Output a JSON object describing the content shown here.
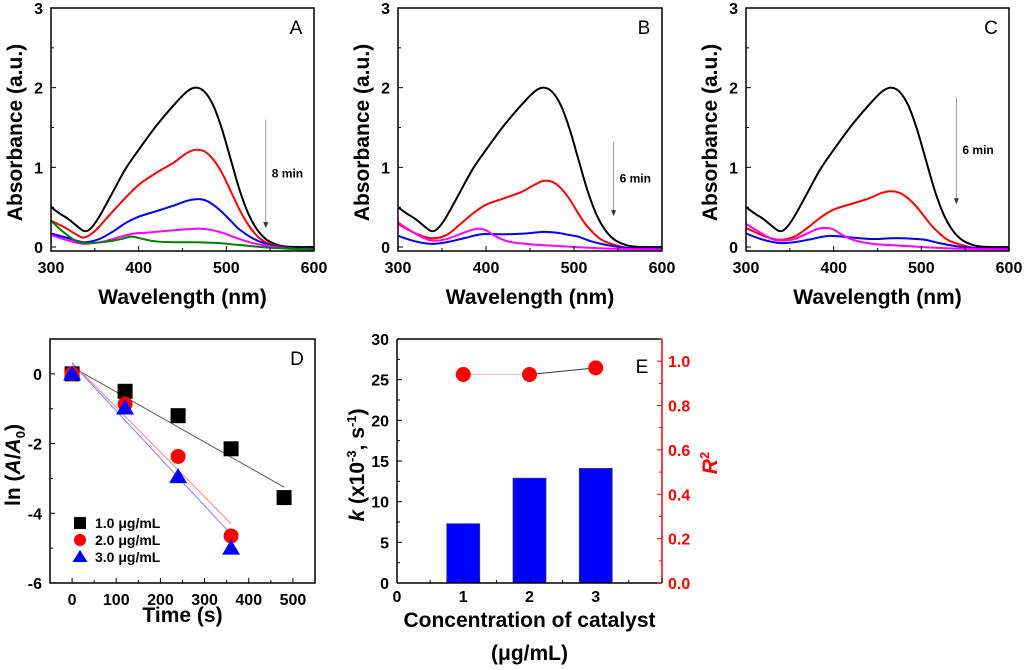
{
  "chart_data": [
    {
      "id": "A",
      "type": "line",
      "panel_label": "A",
      "xlabel": "Wavelength (nm)",
      "ylabel": "Absorbance (a.u.)",
      "xlim": [
        300,
        600
      ],
      "ylim": [
        -0.05,
        3
      ],
      "xticks": [
        300,
        400,
        500,
        600
      ],
      "yticks": [
        0,
        1,
        2,
        3
      ],
      "annotation": "8 min",
      "annotation_arrow": {
        "x": 545,
        "y_from": 1.6,
        "y_to": 0.25
      },
      "series": [
        {
          "name": "t0",
          "color": "#000000",
          "x": [
            300,
            310,
            320,
            330,
            338,
            345,
            355,
            370,
            385,
            400,
            420,
            440,
            455,
            465,
            475,
            485,
            495,
            505,
            515,
            525,
            535,
            545,
            555,
            565,
            580,
            600
          ],
          "y": [
            0.5,
            0.42,
            0.35,
            0.26,
            0.2,
            0.23,
            0.38,
            0.68,
            0.98,
            1.22,
            1.52,
            1.78,
            1.95,
            2.0,
            1.95,
            1.78,
            1.48,
            1.1,
            0.72,
            0.42,
            0.22,
            0.1,
            0.04,
            0.01,
            0.0,
            0.0
          ]
        },
        {
          "name": "t1",
          "color": "#ff0000",
          "x": [
            300,
            315,
            330,
            338,
            350,
            365,
            380,
            400,
            420,
            440,
            455,
            465,
            475,
            485,
            495,
            505,
            515,
            525,
            535,
            545,
            560,
            580,
            600
          ],
          "y": [
            0.33,
            0.25,
            0.15,
            0.12,
            0.2,
            0.38,
            0.56,
            0.78,
            0.93,
            1.06,
            1.18,
            1.22,
            1.2,
            1.1,
            0.93,
            0.7,
            0.47,
            0.28,
            0.14,
            0.06,
            0.01,
            -0.02,
            -0.02
          ]
        },
        {
          "name": "t2",
          "color": "#0000ff",
          "x": [
            300,
            320,
            338,
            355,
            370,
            385,
            400,
            420,
            440,
            455,
            465,
            475,
            485,
            495,
            505,
            515,
            530,
            545,
            560,
            580,
            600
          ],
          "y": [
            0.17,
            0.11,
            0.06,
            0.1,
            0.19,
            0.3,
            0.38,
            0.45,
            0.52,
            0.58,
            0.6,
            0.59,
            0.53,
            0.44,
            0.33,
            0.22,
            0.11,
            0.04,
            0.0,
            -0.02,
            -0.02
          ]
        },
        {
          "name": "t3",
          "color": "#ff00ff",
          "x": [
            300,
            320,
            338,
            360,
            380,
            395,
            410,
            440,
            465,
            480,
            495,
            510,
            530,
            550,
            570,
            600
          ],
          "y": [
            0.15,
            0.08,
            0.04,
            0.07,
            0.13,
            0.17,
            0.18,
            0.21,
            0.23,
            0.22,
            0.18,
            0.12,
            0.05,
            0.01,
            -0.02,
            -0.03
          ]
        },
        {
          "name": "t4",
          "color": "#008000",
          "x": [
            300,
            315,
            330,
            345,
            365,
            380,
            392,
            405,
            420,
            440,
            465,
            490,
            510,
            530,
            550,
            570,
            600
          ],
          "y": [
            0.33,
            0.18,
            0.07,
            0.05,
            0.07,
            0.1,
            0.13,
            0.1,
            0.07,
            0.06,
            0.06,
            0.05,
            0.03,
            0.01,
            -0.01,
            -0.02,
            -0.03
          ]
        }
      ]
    },
    {
      "id": "B",
      "type": "line",
      "panel_label": "B",
      "xlabel": "Wavelength (nm)",
      "ylabel": "Absorbance (a.u.)",
      "xlim": [
        300,
        600
      ],
      "ylim": [
        -0.05,
        3
      ],
      "xticks": [
        300,
        400,
        500,
        600
      ],
      "yticks": [
        0,
        1,
        2,
        3
      ],
      "annotation": "6 min",
      "annotation_arrow": {
        "x": 545,
        "y_from": 1.32,
        "y_to": 0.4
      },
      "series": [
        {
          "name": "t0",
          "color": "#000000",
          "x": [
            300,
            310,
            320,
            330,
            338,
            345,
            355,
            370,
            385,
            400,
            420,
            440,
            455,
            465,
            475,
            485,
            495,
            505,
            515,
            525,
            535,
            545,
            555,
            565,
            580,
            600
          ],
          "y": [
            0.5,
            0.42,
            0.35,
            0.26,
            0.2,
            0.23,
            0.38,
            0.68,
            0.98,
            1.22,
            1.52,
            1.78,
            1.95,
            2.0,
            1.95,
            1.78,
            1.48,
            1.1,
            0.72,
            0.42,
            0.22,
            0.1,
            0.04,
            0.01,
            0.0,
            0.0
          ]
        },
        {
          "name": "t1",
          "color": "#ff0000",
          "x": [
            300,
            320,
            338,
            355,
            370,
            385,
            400,
            420,
            440,
            455,
            465,
            475,
            485,
            495,
            505,
            515,
            530,
            545,
            560,
            580,
            600
          ],
          "y": [
            0.29,
            0.17,
            0.11,
            0.15,
            0.28,
            0.42,
            0.53,
            0.61,
            0.69,
            0.78,
            0.83,
            0.82,
            0.74,
            0.6,
            0.42,
            0.26,
            0.1,
            0.03,
            -0.01,
            -0.02,
            -0.02
          ]
        },
        {
          "name": "t2",
          "color": "#0000ff",
          "x": [
            300,
            320,
            338,
            355,
            375,
            395,
            420,
            445,
            465,
            480,
            495,
            505,
            520,
            540,
            560,
            580,
            600
          ],
          "y": [
            0.14,
            0.07,
            0.04,
            0.06,
            0.11,
            0.16,
            0.16,
            0.17,
            0.19,
            0.18,
            0.15,
            0.13,
            0.07,
            0.02,
            -0.01,
            -0.02,
            -0.02
          ]
        },
        {
          "name": "t3",
          "color": "#ff00ff",
          "x": [
            300,
            315,
            330,
            340,
            355,
            370,
            380,
            390,
            400,
            410,
            425,
            445,
            470,
            500,
            540,
            600
          ],
          "y": [
            0.31,
            0.2,
            0.11,
            0.08,
            0.1,
            0.16,
            0.2,
            0.23,
            0.21,
            0.14,
            0.07,
            0.04,
            0.02,
            0.0,
            -0.02,
            -0.03
          ]
        }
      ]
    },
    {
      "id": "C",
      "type": "line",
      "panel_label": "C",
      "xlabel": "Wavelength (nm)",
      "ylabel": "Absorbance (a.u.)",
      "xlim": [
        300,
        600
      ],
      "ylim": [
        -0.05,
        3
      ],
      "xticks": [
        300,
        400,
        500,
        600
      ],
      "yticks": [
        0,
        1,
        2,
        3
      ],
      "annotation": "6 min",
      "annotation_arrow": {
        "x": 540,
        "y_from": 1.88,
        "y_to": 0.55
      },
      "series": [
        {
          "name": "t0",
          "color": "#000000",
          "x": [
            300,
            310,
            320,
            330,
            338,
            345,
            355,
            370,
            385,
            400,
            420,
            440,
            455,
            465,
            475,
            485,
            495,
            505,
            515,
            525,
            535,
            545,
            555,
            565,
            580,
            600
          ],
          "y": [
            0.5,
            0.42,
            0.35,
            0.26,
            0.2,
            0.23,
            0.38,
            0.68,
            0.98,
            1.22,
            1.52,
            1.78,
            1.95,
            2.0,
            1.95,
            1.78,
            1.48,
            1.1,
            0.72,
            0.42,
            0.22,
            0.1,
            0.04,
            0.01,
            0.0,
            0.0
          ]
        },
        {
          "name": "t1",
          "color": "#ff0000",
          "x": [
            300,
            320,
            338,
            355,
            370,
            385,
            400,
            420,
            440,
            455,
            465,
            475,
            485,
            495,
            505,
            515,
            530,
            545,
            560,
            580,
            600
          ],
          "y": [
            0.24,
            0.14,
            0.09,
            0.13,
            0.24,
            0.37,
            0.47,
            0.54,
            0.61,
            0.68,
            0.7,
            0.68,
            0.61,
            0.5,
            0.36,
            0.23,
            0.09,
            0.03,
            -0.01,
            -0.02,
            -0.02
          ]
        },
        {
          "name": "t2",
          "color": "#0000ff",
          "x": [
            300,
            320,
            338,
            355,
            375,
            395,
            420,
            445,
            465,
            480,
            495,
            505,
            520,
            540,
            560,
            580,
            600
          ],
          "y": [
            0.17,
            0.09,
            0.05,
            0.06,
            0.1,
            0.14,
            0.12,
            0.1,
            0.11,
            0.11,
            0.1,
            0.09,
            0.05,
            0.01,
            -0.01,
            -0.02,
            -0.02
          ]
        },
        {
          "name": "t3",
          "color": "#ff00ff",
          "x": [
            300,
            315,
            330,
            340,
            355,
            370,
            380,
            390,
            400,
            410,
            425,
            445,
            470,
            500,
            540,
            600
          ],
          "y": [
            0.29,
            0.19,
            0.1,
            0.08,
            0.1,
            0.17,
            0.22,
            0.24,
            0.22,
            0.15,
            0.08,
            0.04,
            0.02,
            0.0,
            -0.02,
            -0.03
          ]
        }
      ]
    },
    {
      "id": "D",
      "type": "scatter",
      "panel_label": "D",
      "xlabel": "Time (s)",
      "ylabel": "ln (A/A0)",
      "ylabel_parts": {
        "prefix": "ln  (",
        "a": "A",
        "slash": "/",
        "a0": "A",
        "sub": "0",
        "suffix": ")"
      },
      "xlim": [
        -50,
        550
      ],
      "ylim": [
        -6,
        1
      ],
      "xticks": [
        0,
        100,
        200,
        300,
        400,
        500
      ],
      "yticks": [
        0,
        -2,
        -4,
        -6
      ],
      "legend_position": "bottom-left",
      "series": [
        {
          "name": "1.0 μg/mL",
          "color": "#000000",
          "marker": "square",
          "x": [
            0,
            120,
            240,
            360,
            480
          ],
          "y": [
            0,
            -0.5,
            -1.2,
            -2.15,
            -3.55
          ],
          "fit": {
            "x": [
              0,
              480
            ],
            "y": [
              0.2,
              -3.25
            ],
            "color": "#555555"
          }
        },
        {
          "name": "2.0 μg/mL",
          "color": "#ff0000",
          "marker": "circle",
          "x": [
            0,
            120,
            240,
            360
          ],
          "y": [
            0,
            -0.87,
            -2.37,
            -4.65
          ],
          "fit": {
            "x": [
              0,
              360
            ],
            "y": [
              0.32,
              -4.3
            ],
            "color": "#ff8080"
          }
        },
        {
          "name": "3.0 μg/mL",
          "color": "#0000ff",
          "marker": "triangle",
          "x": [
            0,
            120,
            240,
            360
          ],
          "y": [
            0,
            -0.98,
            -2.95,
            -5.0
          ],
          "fit": {
            "x": [
              0,
              360
            ],
            "y": [
              0.3,
              -4.6
            ],
            "color": "#8080ff"
          }
        }
      ]
    },
    {
      "id": "E",
      "type": "bar",
      "panel_label": "E",
      "xlabel": "Concentration of catalyst",
      "xlabel2": "(μg/mL)",
      "ylabel": "k (x10-3, s-1)",
      "ylabel_parts": {
        "k": "k",
        "mid": " (x10",
        "sup1": "-3",
        "mid2": ", s",
        "sup2": "-1",
        "end": ")"
      },
      "y2label": "R2",
      "y2label_parts": {
        "r": "R",
        "sup": "2"
      },
      "xlim": [
        0,
        4
      ],
      "ylim": [
        0,
        30
      ],
      "y2lim": [
        0,
        1.1
      ],
      "xticks": [
        0,
        1,
        2,
        3
      ],
      "yticks": [
        0,
        5,
        10,
        15,
        20,
        25,
        30
      ],
      "y2ticks": [
        "0.0",
        "0.2",
        "0.4",
        "0.6",
        "0.8",
        "1.0"
      ],
      "categories": [
        1,
        2,
        3
      ],
      "values": [
        7.3,
        12.9,
        14.1
      ],
      "bar_color": "#0000ff",
      "r2_series": {
        "name": "R2",
        "color": "#ff0000",
        "x": [
          1,
          2,
          3
        ],
        "y": [
          0.94,
          0.94,
          0.97
        ]
      },
      "axis2_color": "#ff0000"
    }
  ]
}
